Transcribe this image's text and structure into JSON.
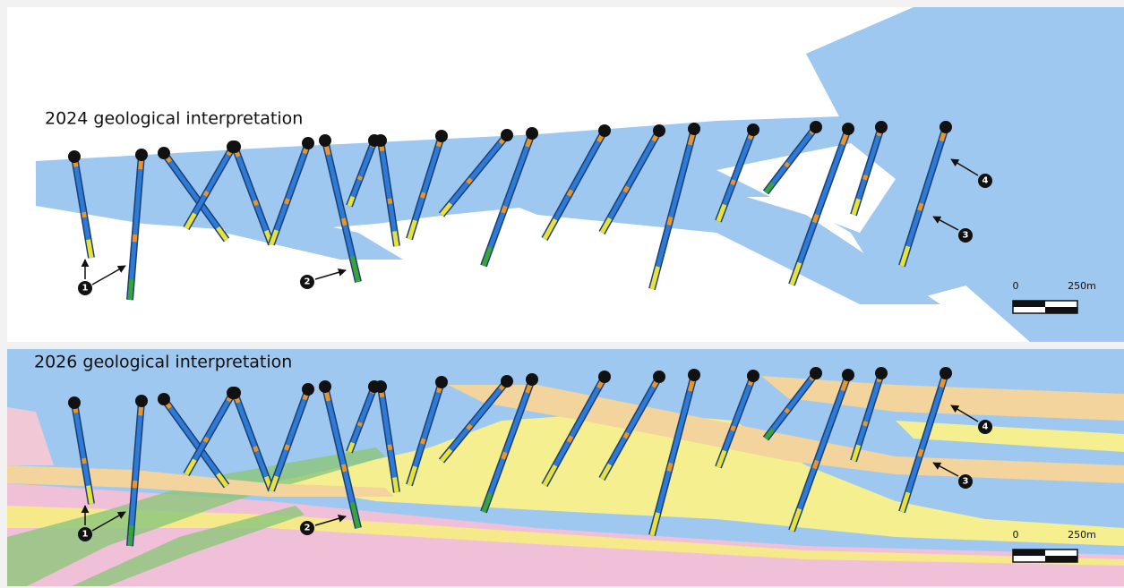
{
  "panels": [
    {
      "title": "2024 geological interpretation",
      "callouts": [
        "1",
        "2",
        "3",
        "4"
      ],
      "scale_bar": {
        "start": "0",
        "end": "250m"
      }
    },
    {
      "title": "2026 geological interpretation",
      "callouts": [
        "1",
        "2",
        "3",
        "4"
      ],
      "scale_bar": {
        "start": "0",
        "end": "250m"
      }
    }
  ]
}
